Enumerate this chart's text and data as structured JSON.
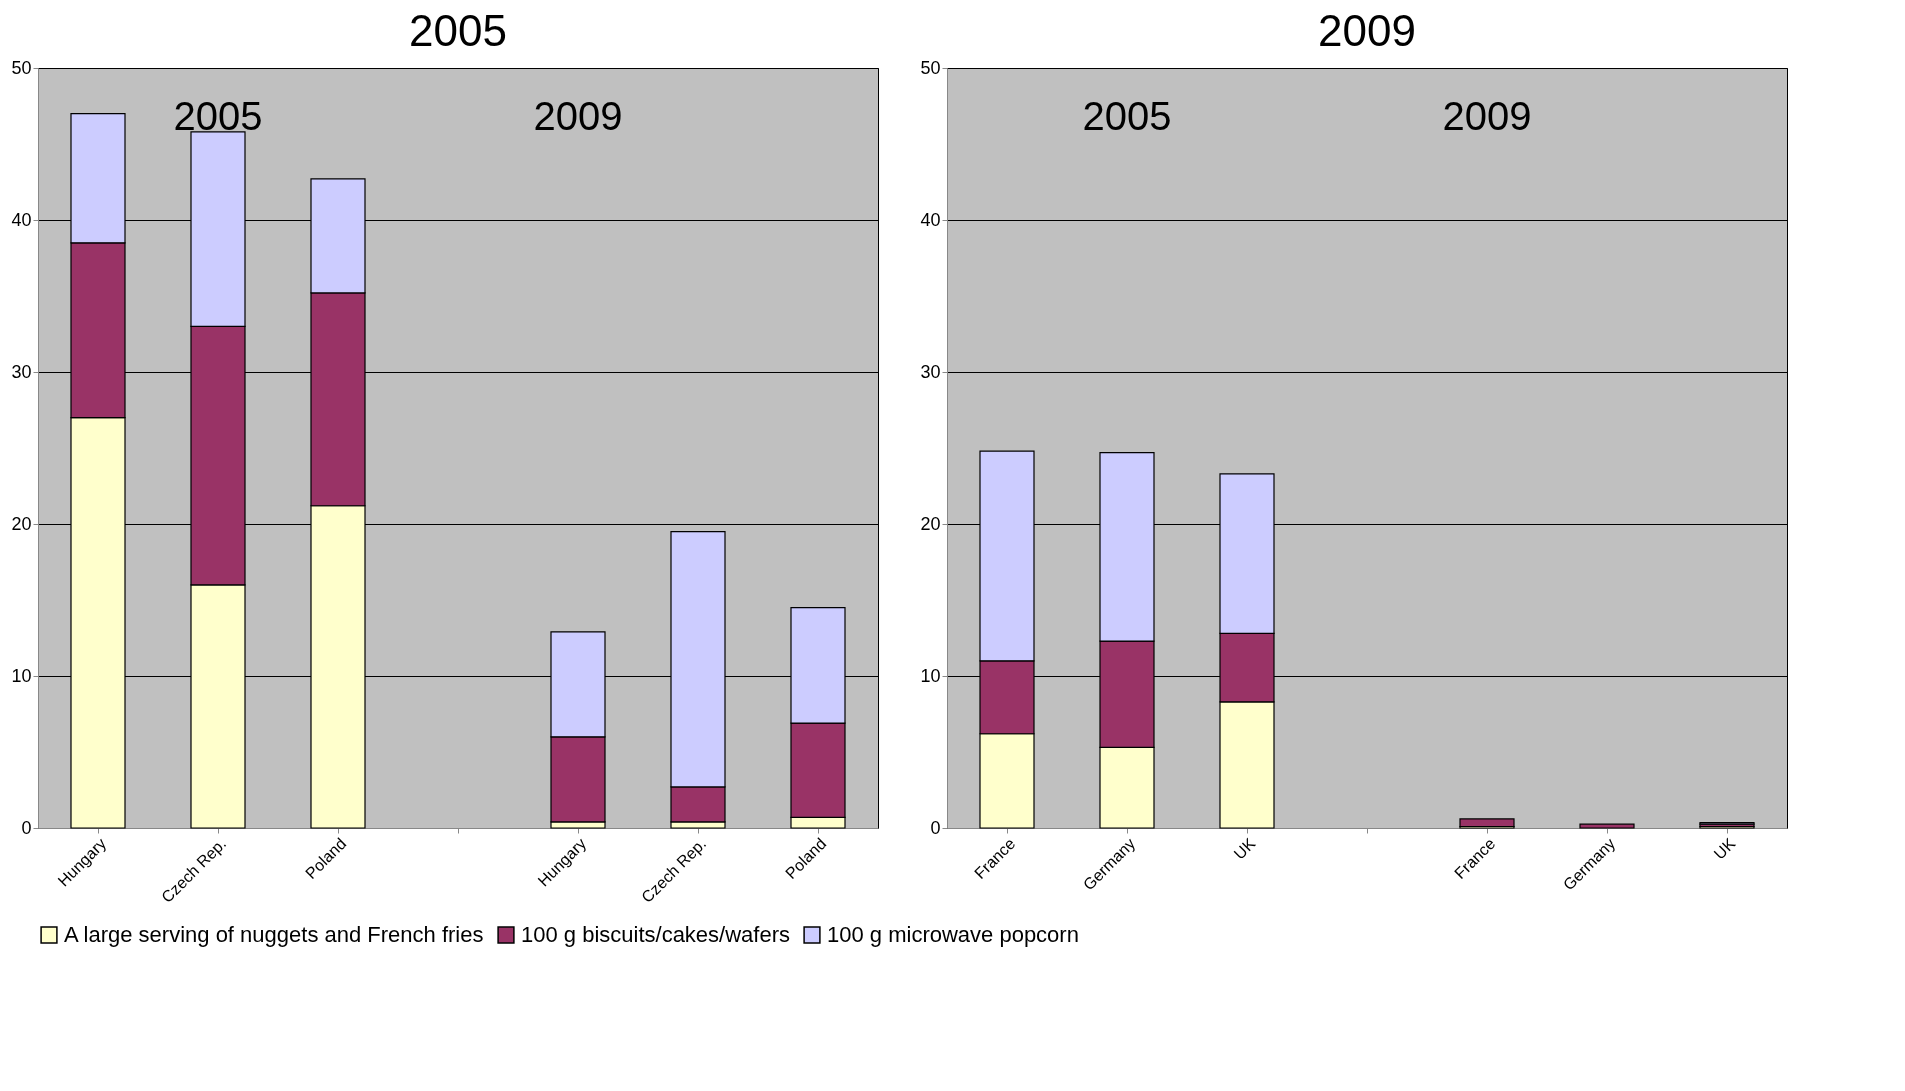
{
  "chart_data": [
    {
      "type": "bar",
      "title": "2005",
      "stacked": true,
      "categories": [
        "Hungary",
        "Czech Rep.",
        "Poland",
        null,
        "Hungary",
        "Czech Rep.",
        "Poland"
      ],
      "series": [
        {
          "name": "A large serving of nuggets and French fries",
          "color": "#ffffcc",
          "values": [
            27,
            16,
            21.2,
            null,
            0.4,
            0.4,
            0.7
          ]
        },
        {
          "name": "100 g biscuits/cakes/wafers",
          "color": "#993366",
          "values": [
            11.5,
            17,
            14,
            null,
            5.6,
            2.3,
            6.2
          ]
        },
        {
          "name": "100 g microwave popcorn",
          "color": "#ccccff",
          "values": [
            8.5,
            12.8,
            7.5,
            null,
            6.9,
            16.8,
            7.6
          ]
        }
      ],
      "annotations": [
        "2005",
        "2009"
      ],
      "ylim": [
        0,
        50
      ],
      "yticks": [
        0,
        10,
        20,
        30,
        40,
        50
      ],
      "grid": "y",
      "legend": "bottom"
    },
    {
      "type": "bar",
      "title": "2009",
      "stacked": true,
      "categories": [
        "France",
        "Germany",
        "UK",
        null,
        "France",
        "Germany",
        "UK"
      ],
      "series": [
        {
          "name": "A large serving of nuggets and French fries",
          "color": "#ffffcc",
          "values": [
            6.2,
            5.3,
            8.3,
            null,
            0.1,
            null,
            0.1
          ]
        },
        {
          "name": "100 g biscuits/cakes/wafers",
          "color": "#993366",
          "values": [
            4.8,
            7,
            4.5,
            null,
            0.5,
            0.25,
            0.15
          ]
        },
        {
          "name": "100 g microwave popcorn",
          "color": "#ccccff",
          "values": [
            13.8,
            12.4,
            10.5,
            null,
            null,
            null,
            0.1
          ]
        }
      ],
      "annotations": [
        "2005",
        "2009"
      ],
      "ylim": [
        0,
        50
      ],
      "yticks": [
        0,
        10,
        20,
        30,
        40,
        50
      ],
      "grid": "y",
      "legend": "bottom"
    }
  ]
}
